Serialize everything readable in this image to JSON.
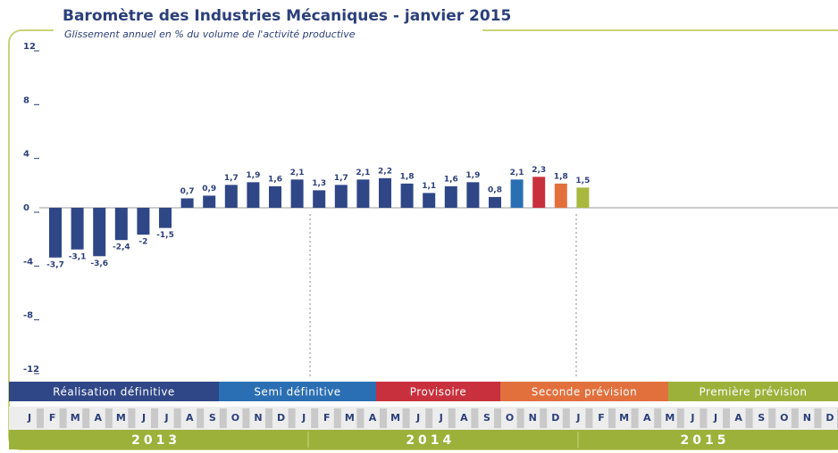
{
  "chart_data": {
    "type": "bar",
    "title": "Baromètre des Industries Mécaniques - janvier 2015",
    "subtitle": "Glissement annuel en % du volume de l'activité productive",
    "categories": [
      "J",
      "F",
      "M",
      "A",
      "M",
      "J",
      "J",
      "A",
      "S",
      "O",
      "N",
      "D",
      "J",
      "F",
      "M",
      "A",
      "M",
      "J",
      "J",
      "A",
      "S",
      "O",
      "N",
      "D",
      "J",
      "F",
      "M",
      "A",
      "M",
      "J",
      "J",
      "A",
      "S",
      "O",
      "N",
      "D"
    ],
    "values": [
      -3.7,
      -3.1,
      -3.6,
      -2.4,
      -2,
      -1.5,
      0.7,
      0.9,
      1.7,
      1.9,
      1.6,
      2.1,
      1.3,
      1.7,
      2.1,
      2.2,
      1.8,
      1.1,
      1.6,
      1.9,
      0.8,
      2.1,
      2.3,
      1.8,
      1.5,
      null,
      null,
      null,
      null,
      null,
      null,
      null,
      null,
      null,
      null,
      null
    ],
    "value_labels": [
      "-3,7",
      "-3,1",
      "-3,6",
      "-2,4",
      "-2",
      "-1,5",
      "0,7",
      "0,9",
      "1,7",
      "1,9",
      "1,6",
      "2,1",
      "1,3",
      "1,7",
      "2,1",
      "2,2",
      "1,8",
      "1,1",
      "1,6",
      "1,9",
      "0,8",
      "2,1",
      "2,3",
      "1,8",
      "1,5",
      null,
      null,
      null,
      null,
      null,
      null,
      null,
      null,
      null,
      null,
      null
    ],
    "colors": [
      "#2f4687",
      "#2f4687",
      "#2f4687",
      "#2f4687",
      "#2f4687",
      "#2f4687",
      "#2f4687",
      "#2f4687",
      "#2f4687",
      "#2f4687",
      "#2f4687",
      "#2f4687",
      "#2f4687",
      "#2f4687",
      "#2f4687",
      "#2f4687",
      "#2f4687",
      "#2f4687",
      "#2f4687",
      "#2f4687",
      "#2f4687",
      "#2a6fb3",
      "#c9303d",
      "#e2703d",
      "#a9b83e",
      null,
      null,
      null,
      null,
      null,
      null,
      null,
      null,
      null,
      null,
      null
    ],
    "ylim": [
      -12,
      12
    ],
    "yticks": [
      12,
      8,
      4,
      0,
      -4,
      -8,
      -12
    ],
    "phases": [
      {
        "name": "Réalisation définitive",
        "color": "#2f4687"
      },
      {
        "name": "Semi définitive",
        "color": "#2a6fb3"
      },
      {
        "name": "Provisoire",
        "color": "#c9303d"
      },
      {
        "name": "Seconde prévision",
        "color": "#e2703d"
      },
      {
        "name": "Première prévision",
        "color": "#9bb13a"
      }
    ],
    "years": [
      "2013",
      "2014",
      "2015"
    ]
  }
}
